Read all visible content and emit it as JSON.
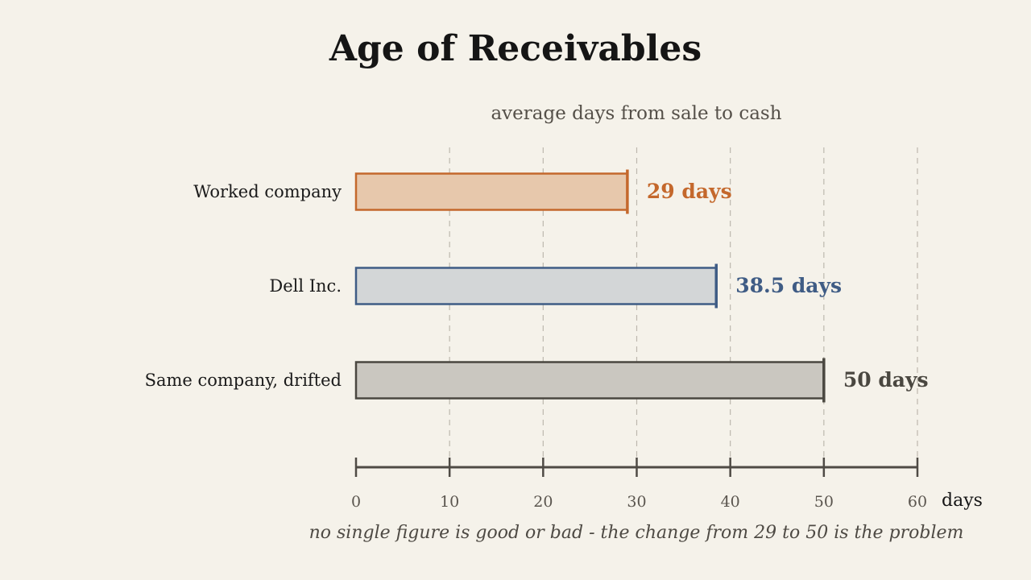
{
  "chart_data": {
    "type": "bar",
    "orientation": "horizontal",
    "title": "Age of Receivables",
    "subtitle": "average days from sale to cash",
    "xlabel": "days",
    "xlim": [
      0,
      60
    ],
    "xticks": [
      0,
      10,
      20,
      30,
      40,
      50,
      60
    ],
    "grid": true,
    "categories": [
      "Worked company",
      "Dell Inc.",
      "Same company, drifted"
    ],
    "values": [
      29,
      38.5,
      50
    ],
    "value_labels": [
      "29 days",
      "38.5 days",
      "50 days"
    ],
    "colors": {
      "stroke": [
        "#c4682c",
        "#3f5c85",
        "#4a4740"
      ],
      "fill": [
        "#e7c8ac",
        "#d3d6d7",
        "#cac7c0"
      ]
    },
    "annotation": "no single figure is good or bad - the change from 29 to 50 is the problem"
  }
}
